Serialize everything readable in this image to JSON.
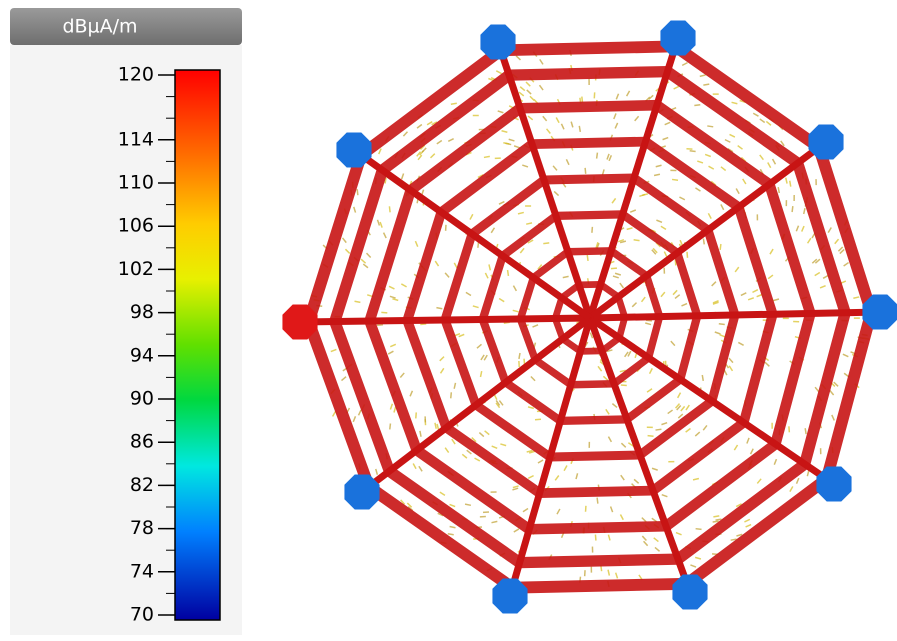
{
  "legend": {
    "unit": "dBµA/m",
    "ticks": [
      120,
      114,
      110,
      106,
      102,
      98,
      94,
      90,
      86,
      82,
      78,
      74,
      70
    ]
  }
}
